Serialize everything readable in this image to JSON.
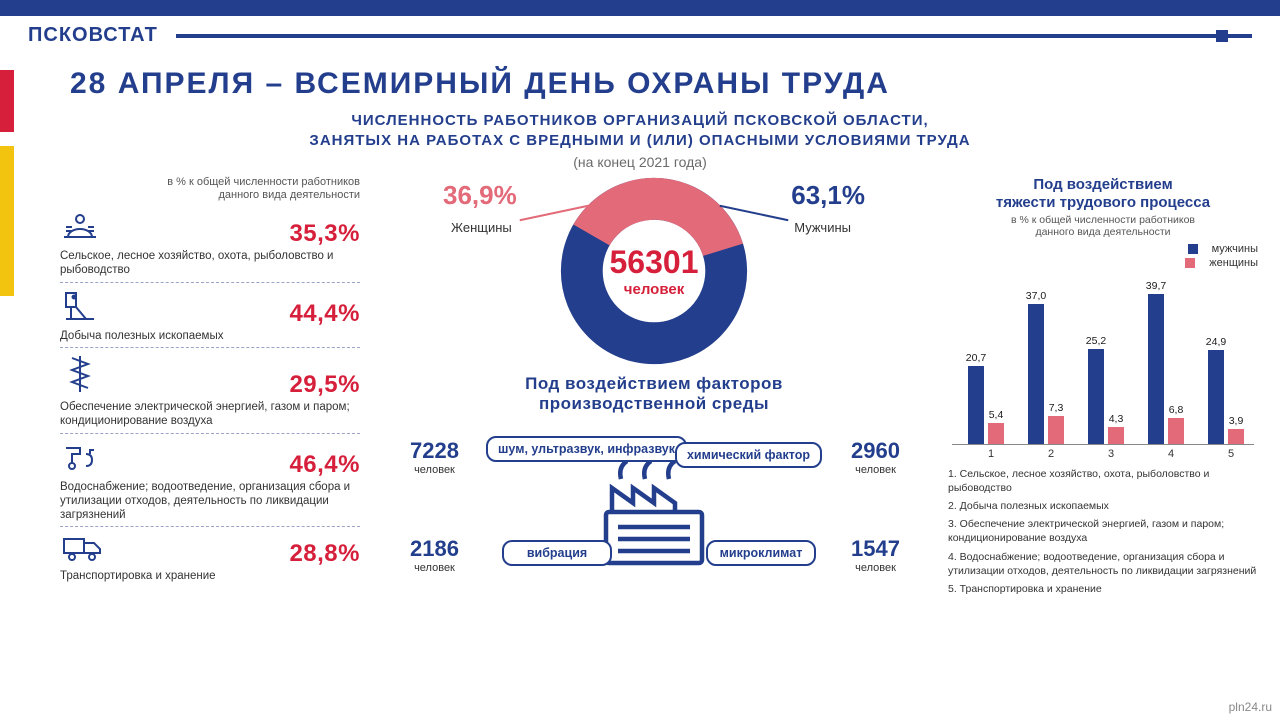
{
  "brand": "ПСКОВСТАТ",
  "colors": {
    "navy": "#233e8c",
    "red": "#d61f3a",
    "pink": "#e36a78",
    "yellow": "#f3c40f",
    "grid": "#cfcfcf"
  },
  "title": "28  АПРЕЛЯ  –  ВСЕМИРНЫЙ  ДЕНЬ  ОХРАНЫ  ТРУДА",
  "subtitle_l1": "ЧИСЛЕННОСТЬ  РАБОТНИКОВ  ОРГАНИЗАЦИЙ  ПСКОВСКОЙ  ОБЛАСТИ,",
  "subtitle_l2": "ЗАНЯТЫХ НА РАБОТАХ С ВРЕДНЫМИ И (ИЛИ) ОПАСНЫМИ УСЛОВИЯМИ ТРУДА",
  "subnote": "(на конец 2021 года)",
  "left": {
    "caption_l1": "в % к общей численности  работников",
    "caption_l2": "данного вида деятельности",
    "items": [
      {
        "pct": "35,3%",
        "label": "Сельское, лесное хозяйство, охота, рыболовство и рыбоводство"
      },
      {
        "pct": "44,4%",
        "label": "Добыча полезных ископаемых"
      },
      {
        "pct": "29,5%",
        "label": "Обеспечение электрической энергией, газом и паром; кондиционирование воздуха"
      },
      {
        "pct": "46,4%",
        "label": "Водоснабжение; водоотведение, организация сбора и утилизации отходов, деятельность по ликвидации загрязнений"
      },
      {
        "pct": "28,8%",
        "label": "Транспортировка и хранение"
      }
    ]
  },
  "donut": {
    "total": "56301",
    "unit": "человек",
    "female_pct": 36.9,
    "female_pct_text": "36,9%",
    "female_label": "Женщины",
    "male_pct": 63.1,
    "male_pct_text": "63,1%",
    "male_label": "Мужчины",
    "ring_width": 22
  },
  "mid_title_l1": "Под воздействием факторов",
  "mid_title_l2": "производственной среды",
  "factors": {
    "tl": {
      "n": "7228",
      "u": "человек",
      "t": "шум, ультразвук, инфразвук"
    },
    "tr": {
      "n": "2960",
      "u": "человек",
      "t": "химический фактор"
    },
    "bl": {
      "n": "2186",
      "u": "человек",
      "t": "вибрация"
    },
    "br": {
      "n": "1547",
      "u": "человек",
      "t": "микроклимат"
    }
  },
  "right": {
    "title_l1": "Под воздействием",
    "title_l2": "тяжести трудового процесса",
    "caption_l1": "в % к общей численности  работников",
    "caption_l2": "данного вида деятельности",
    "legend_m": "мужчины",
    "legend_f": "женщины",
    "ymax": 45,
    "series_m": [
      20.7,
      37.0,
      25.2,
      39.7,
      24.9
    ],
    "series_f": [
      5.4,
      7.3,
      4.3,
      6.8,
      3.9
    ],
    "labels_m": [
      "20,7",
      "37,0",
      "25,2",
      "39,7",
      "24,9"
    ],
    "labels_f": [
      "5,4",
      "7,3",
      "4,3",
      "6,8",
      "3,9"
    ],
    "xlabels": [
      "1",
      "2",
      "3",
      "4",
      "5"
    ],
    "notes": [
      "1. Сельское, лесное хозяйство, охота, рыболовство и рыбоводство",
      "2. Добыча полезных ископаемых",
      "3. Обеспечение электрической энергией, газом и паром; кондиционирование воздуха",
      "4. Водоснабжение; водоотведение, организация сбора и утилизации отходов, деятельность по ликвидации загрязнений",
      "5. Транспортировка и хранение"
    ]
  },
  "watermark": "pln24.ru"
}
